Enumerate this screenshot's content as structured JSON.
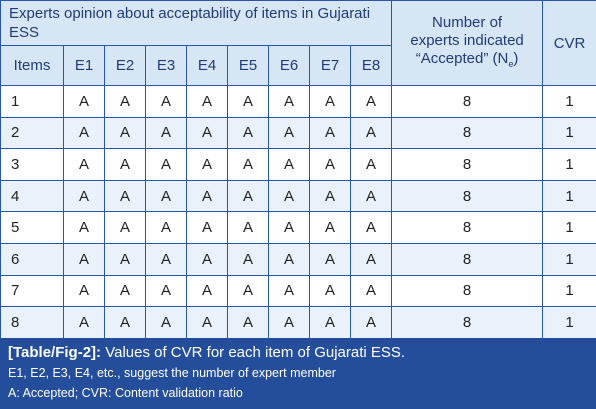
{
  "table": {
    "title": "Experts opinion about acceptability of items in Gujarati ESS",
    "col_items": "Items",
    "experts": [
      "E1",
      "E2",
      "E3",
      "E4",
      "E5",
      "E6",
      "E7",
      "E8"
    ],
    "col_number_line1": "Number of",
    "col_number_line2": "experts indicated",
    "col_number_line3": "“Accepted” (N",
    "col_number_sub": "e",
    "col_number_close": ")",
    "col_cvr": "CVR",
    "rows": [
      {
        "item": "1",
        "marks": [
          "A",
          "A",
          "A",
          "A",
          "A",
          "A",
          "A",
          "A"
        ],
        "count": "8",
        "cvr": "1"
      },
      {
        "item": "2",
        "marks": [
          "A",
          "A",
          "A",
          "A",
          "A",
          "A",
          "A",
          "A"
        ],
        "count": "8",
        "cvr": "1"
      },
      {
        "item": "3",
        "marks": [
          "A",
          "A",
          "A",
          "A",
          "A",
          "A",
          "A",
          "A"
        ],
        "count": "8",
        "cvr": "1"
      },
      {
        "item": "4",
        "marks": [
          "A",
          "A",
          "A",
          "A",
          "A",
          "A",
          "A",
          "A"
        ],
        "count": "8",
        "cvr": "1"
      },
      {
        "item": "5",
        "marks": [
          "A",
          "A",
          "A",
          "A",
          "A",
          "A",
          "A",
          "A"
        ],
        "count": "8",
        "cvr": "1"
      },
      {
        "item": "6",
        "marks": [
          "A",
          "A",
          "A",
          "A",
          "A",
          "A",
          "A",
          "A"
        ],
        "count": "8",
        "cvr": "1"
      },
      {
        "item": "7",
        "marks": [
          "A",
          "A",
          "A",
          "A",
          "A",
          "A",
          "A",
          "A"
        ],
        "count": "8",
        "cvr": "1"
      },
      {
        "item": "8",
        "marks": [
          "A",
          "A",
          "A",
          "A",
          "A",
          "A",
          "A",
          "A"
        ],
        "count": "8",
        "cvr": "1"
      }
    ]
  },
  "caption": {
    "label": "[Table/Fig-2]:",
    "text": " Values of CVR for each item of Gujarati ESS.",
    "note1": "E1, E2, E3, E4, etc., suggest the number of expert member",
    "note2": "A: Accepted; CVR: Content validation ratio"
  },
  "colors": {
    "header_bg": "#d7e6f5",
    "header_text": "#1f3b78",
    "border": "#2a56a6",
    "stripe": "#e9f2fb",
    "caption_bg": "#244e9b"
  }
}
